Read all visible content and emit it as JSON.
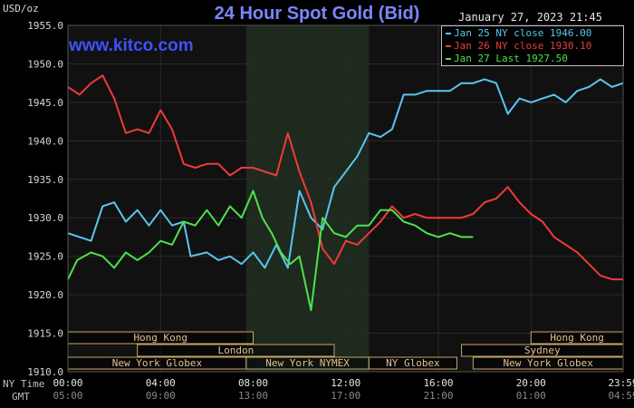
{
  "header": {
    "title": "24 Hour Spot Gold (Bid)",
    "unit": "USD/oz",
    "timestamp": "January 27, 2023 21:45",
    "watermark": "www.kitco.com"
  },
  "x_axis": {
    "ny_label": "NY Time",
    "gmt_label": "GMT",
    "ny_ticks": [
      "00:00",
      "04:00",
      "08:00",
      "12:00",
      "16:00",
      "20:00",
      "23:59"
    ],
    "gmt_ticks": [
      "05:00",
      "09:00",
      "13:00",
      "17:00",
      "21:00",
      "01:00",
      "04:59"
    ]
  },
  "market_sessions": [
    {
      "name": "Hong Kong",
      "start": 0,
      "end": 8
    },
    {
      "name": "Hong Kong",
      "start": 20,
      "end": 23.98
    },
    {
      "name": "London",
      "start": 3,
      "end": 11.5
    },
    {
      "name": "Sydney",
      "start": 17,
      "end": 23.98
    },
    {
      "name": "New York Globex",
      "start": 0,
      "end": 7.7
    },
    {
      "name": "New York NYMEX",
      "start": 7.7,
      "end": 13
    },
    {
      "name": "NY Globex",
      "start": 13,
      "end": 16.8
    },
    {
      "name": "New York Globex",
      "start": 17.5,
      "end": 23.98
    }
  ],
  "colors": {
    "background": "#000000",
    "plot_background": "#111111",
    "nymex_shade": "#1e2a1e",
    "grid": "#2a2a2a",
    "axis_text": "#d9d9d9",
    "session_border": "#c9a46a",
    "session_text": "#e0c290",
    "jan25": "#59c6f0",
    "jan26": "#f03a3a",
    "jan27": "#4de34d"
  },
  "chart_data": {
    "type": "line",
    "title": "24 Hour Spot Gold (Bid)",
    "ylabel": "USD/oz",
    "ylim": [
      1910.0,
      1955.0
    ],
    "xlim": [
      0,
      23.98
    ],
    "y_ticks": [
      "1910.0",
      "1915.0",
      "1920.0",
      "1925.0",
      "1930.0",
      "1935.0",
      "1940.0",
      "1945.0",
      "1950.0",
      "1955.0"
    ],
    "nymex_session": [
      7.7,
      13
    ],
    "grid": true,
    "legend_position": "top-right",
    "series": [
      {
        "name": "Jan 25 NY close 1946.00",
        "color": "#59c6f0",
        "x": [
          0,
          0.5,
          1,
          1.5,
          2,
          2.5,
          3,
          3.5,
          4,
          4.5,
          5,
          5.3,
          6,
          6.5,
          7,
          7.5,
          8,
          8.5,
          9,
          9.5,
          10,
          10.5,
          11,
          11.5,
          12,
          12.5,
          13,
          13.5,
          14,
          14.5,
          15,
          15.5,
          16,
          16.5,
          17,
          17.5,
          18,
          18.5,
          19,
          19.5,
          20,
          20.5,
          21,
          21.5,
          22,
          22.5,
          23,
          23.5,
          23.98
        ],
        "values": [
          1928.0,
          1927.5,
          1927.0,
          1931.5,
          1932.0,
          1929.5,
          1931.0,
          1929.0,
          1931.0,
          1929.0,
          1929.5,
          1925.0,
          1925.5,
          1924.5,
          1925.0,
          1924.0,
          1925.5,
          1923.5,
          1926.5,
          1923.5,
          1933.5,
          1930.0,
          1928.5,
          1934.0,
          1936.0,
          1938.0,
          1941.0,
          1940.5,
          1941.5,
          1946.0,
          1946.0,
          1946.5,
          1946.5,
          1946.5,
          1947.5,
          1947.5,
          1948.0,
          1947.5,
          1943.5,
          1945.5,
          1945.0,
          1945.5,
          1946.0,
          1945.0,
          1946.5,
          1947.0,
          1948.0,
          1947.0,
          1947.5
        ]
      },
      {
        "name": "Jan 26 NY close 1930.10",
        "color": "#f03a3a",
        "x": [
          0,
          0.5,
          1,
          1.5,
          2,
          2.5,
          3,
          3.5,
          4,
          4.5,
          5,
          5.5,
          6,
          6.5,
          7,
          7.5,
          8,
          8.5,
          9,
          9.5,
          10,
          10.5,
          11,
          11.5,
          12,
          12.5,
          13,
          13.5,
          14,
          14.5,
          15,
          15.5,
          16,
          16.5,
          17,
          17.5,
          18,
          18.5,
          19,
          19.5,
          20,
          20.5,
          21,
          21.5,
          22,
          22.5,
          23,
          23.5,
          23.98
        ],
        "values": [
          1947.0,
          1946.0,
          1947.5,
          1948.5,
          1945.5,
          1941.0,
          1941.5,
          1941.0,
          1944.0,
          1941.5,
          1937.0,
          1936.5,
          1937.0,
          1937.0,
          1935.5,
          1936.5,
          1936.5,
          1936.0,
          1935.5,
          1941.0,
          1936.0,
          1932.0,
          1926.0,
          1924.0,
          1927.0,
          1926.5,
          1928.0,
          1929.5,
          1931.5,
          1930.0,
          1930.5,
          1930.0,
          1930.0,
          1930.0,
          1930.0,
          1930.5,
          1932.0,
          1932.5,
          1934.0,
          1932.0,
          1930.5,
          1929.5,
          1927.5,
          1926.5,
          1925.5,
          1924.0,
          1922.5,
          1922.0,
          1922.0
        ]
      },
      {
        "name": "Jan 27 Last 1927.50",
        "color": "#4de34d",
        "x": [
          0,
          0.4,
          1,
          1.5,
          2,
          2.5,
          3,
          3.5,
          4,
          4.5,
          5,
          5.5,
          6,
          6.5,
          7,
          7.5,
          8,
          8.4,
          8.8,
          9.2,
          9.6,
          10,
          10.5,
          11,
          11.5,
          12,
          12.5,
          13,
          13.5,
          14,
          14.5,
          15,
          15.5,
          16,
          16.5,
          17,
          17.5
        ],
        "values": [
          1922.0,
          1924.5,
          1925.5,
          1925.0,
          1923.5,
          1925.5,
          1924.5,
          1925.5,
          1927.0,
          1926.5,
          1929.5,
          1929.0,
          1931.0,
          1929.0,
          1931.5,
          1930.0,
          1933.5,
          1930.0,
          1928.0,
          1925.5,
          1924.0,
          1925.0,
          1918.0,
          1930.0,
          1928.0,
          1927.5,
          1929.0,
          1929.0,
          1931.0,
          1931.0,
          1929.5,
          1929.0,
          1928.0,
          1927.5,
          1928.0,
          1927.5,
          1927.5
        ]
      }
    ]
  }
}
